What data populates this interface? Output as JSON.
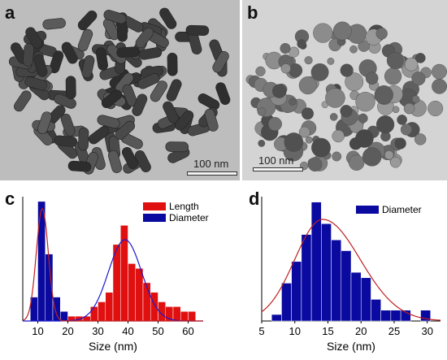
{
  "panels": {
    "a": {
      "letter": "a",
      "scale_label": "100 nm"
    },
    "b": {
      "letter": "b",
      "scale_label": "100 nm"
    },
    "c": {
      "letter": "c"
    },
    "d": {
      "letter": "d"
    }
  },
  "colors": {
    "length_bar": "#e01010",
    "diameter_bar": "#0a0aa0",
    "length_fit": "#1a1acc",
    "diameter_fit": "#c02020"
  },
  "chart_data": [
    {
      "type": "bar",
      "panel": "c",
      "xlabel": "Size (nm)",
      "ylabel": "",
      "xlim": [
        5,
        65
      ],
      "xticks": [
        10,
        20,
        30,
        40,
        50,
        60
      ],
      "bin_width": 2.5,
      "legend_position": "top-right",
      "series": [
        {
          "name": "Length",
          "color": "#e01010",
          "bins": [
            16.25,
            18.75,
            21.25,
            23.75,
            26.25,
            28.75,
            31.25,
            33.75,
            36.25,
            38.75,
            41.25,
            43.75,
            46.25,
            48.75,
            51.25,
            53.75,
            56.25,
            58.75,
            61.25
          ],
          "values": [
            0.5,
            1,
            1,
            1,
            1,
            3,
            4,
            6,
            16,
            20,
            12,
            11,
            8,
            6,
            4,
            3,
            3,
            2,
            2
          ]
        },
        {
          "name": "Diameter",
          "color": "#0a0aa0",
          "bins": [
            8.75,
            11.25,
            13.75,
            16.25,
            18.75
          ],
          "values": [
            5,
            25,
            14,
            5,
            2
          ]
        }
      ],
      "fits": [
        {
          "series": "Length",
          "color": "#1a1acc",
          "mean": 39,
          "sigma": 5.5,
          "peak": 17
        },
        {
          "series": "Diameter",
          "color": "#c02020",
          "mean": 11.5,
          "sigma": 2.0,
          "peak": 23.5
        }
      ],
      "ymax": 26
    },
    {
      "type": "bar",
      "panel": "d",
      "xlabel": "Size (nm)",
      "ylabel": "",
      "xlim": [
        5,
        32
      ],
      "xticks": [
        5,
        10,
        15,
        20,
        25,
        30
      ],
      "bin_width": 1.5,
      "legend_position": "top-right",
      "series": [
        {
          "name": "Diameter",
          "color": "#0a0aa0",
          "bins": [
            7.25,
            8.75,
            10.25,
            11.75,
            13.25,
            14.75,
            16.25,
            17.75,
            19.25,
            20.75,
            22.25,
            23.75,
            25.25,
            26.75,
            28.25,
            29.75
          ],
          "values": [
            0.6,
            3.5,
            5.5,
            8,
            11,
            9,
            7.5,
            6.5,
            4.5,
            4,
            2,
            1,
            1,
            1,
            0,
            1
          ]
        }
      ],
      "fits": [
        {
          "series": "Diameter",
          "color": "#c02020",
          "mean": 14.2,
          "sigma": 4.2,
          "peak": 9.4,
          "skew": true
        }
      ],
      "ymax": 11.5
    }
  ]
}
